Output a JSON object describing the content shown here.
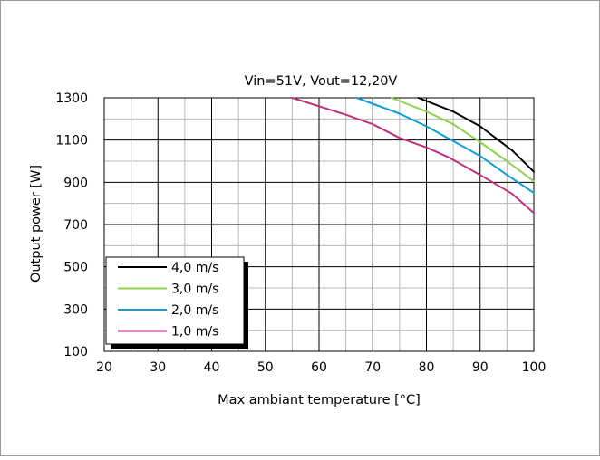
{
  "chart_data": {
    "type": "line",
    "title": "Vin=51V, Vout=12,20V",
    "xlabel": "Max ambiant temperature [°C]",
    "ylabel": "Output power [W]",
    "xlim": [
      20,
      100
    ],
    "ylim": [
      100,
      1300
    ],
    "xticks": [
      "20",
      "30",
      "40",
      "50",
      "60",
      "70",
      "80",
      "90",
      "100"
    ],
    "yticks": [
      "100",
      "300",
      "500",
      "700",
      "900",
      "1100",
      "1300"
    ],
    "grid": true,
    "legend_position": "bottom-left",
    "series": [
      {
        "name": "4,0 m/s",
        "color": "#000000",
        "points": [
          [
            78.5,
            1300
          ],
          [
            85,
            1235
          ],
          [
            90,
            1165
          ],
          [
            96,
            1050
          ],
          [
            100,
            950
          ]
        ]
      },
      {
        "name": "3,0 m/s",
        "color": "#92d050",
        "points": [
          [
            73.5,
            1300
          ],
          [
            80,
            1235
          ],
          [
            85,
            1175
          ],
          [
            90,
            1090
          ],
          [
            95,
            1000
          ],
          [
            100,
            905
          ]
        ]
      },
      {
        "name": "2,0 m/s",
        "color": "#0f9ed5",
        "points": [
          [
            67,
            1300
          ],
          [
            75,
            1225
          ],
          [
            80,
            1165
          ],
          [
            85,
            1095
          ],
          [
            90,
            1025
          ],
          [
            95,
            935
          ],
          [
            100,
            850
          ]
        ]
      },
      {
        "name": "1,0 m/s",
        "color": "#c0307f",
        "points": [
          [
            55,
            1300
          ],
          [
            65,
            1220
          ],
          [
            70,
            1175
          ],
          [
            75,
            1110
          ],
          [
            80,
            1065
          ],
          [
            84,
            1020
          ],
          [
            90,
            935
          ],
          [
            96,
            845
          ],
          [
            100,
            755
          ]
        ]
      }
    ]
  }
}
